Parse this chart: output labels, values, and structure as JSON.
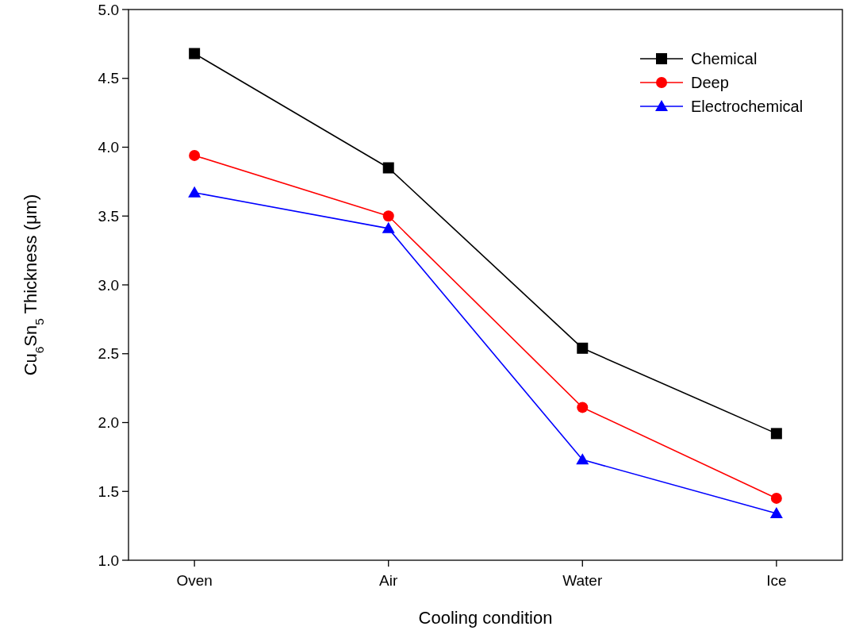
{
  "chart_data": {
    "type": "line",
    "xlabel": "Cooling condition",
    "ylabel": "Cu$_{6}$Sn$_{5}$ Thickness (μm)",
    "categories": [
      "Oven",
      "Air",
      "Water",
      "Ice"
    ],
    "series": [
      {
        "name": "Chemical",
        "color": "#000000",
        "marker": "square",
        "values": [
          4.68,
          3.85,
          2.54,
          1.92
        ]
      },
      {
        "name": "Deep",
        "color": "#ff0000",
        "marker": "circle",
        "values": [
          3.94,
          3.5,
          2.11,
          1.45
        ]
      },
      {
        "name": "Electrochemical",
        "color": "#0000ff",
        "marker": "triangle",
        "values": [
          3.67,
          3.41,
          1.73,
          1.34
        ]
      }
    ],
    "ylim": [
      1,
      5
    ],
    "yticks": [
      {
        "value": 1,
        "label": "1.0"
      },
      {
        "value": 1.5,
        "label": "1.5"
      },
      {
        "value": 2,
        "label": "2.0"
      },
      {
        "value": 2.5,
        "label": "2.5"
      },
      {
        "value": 3,
        "label": "3.0"
      },
      {
        "value": 3.5,
        "label": "3.5"
      },
      {
        "value": 4,
        "label": "4.0"
      },
      {
        "value": 4.5,
        "label": "4.5"
      },
      {
        "value": 5,
        "label": "5.0"
      }
    ],
    "legend": "top right"
  }
}
